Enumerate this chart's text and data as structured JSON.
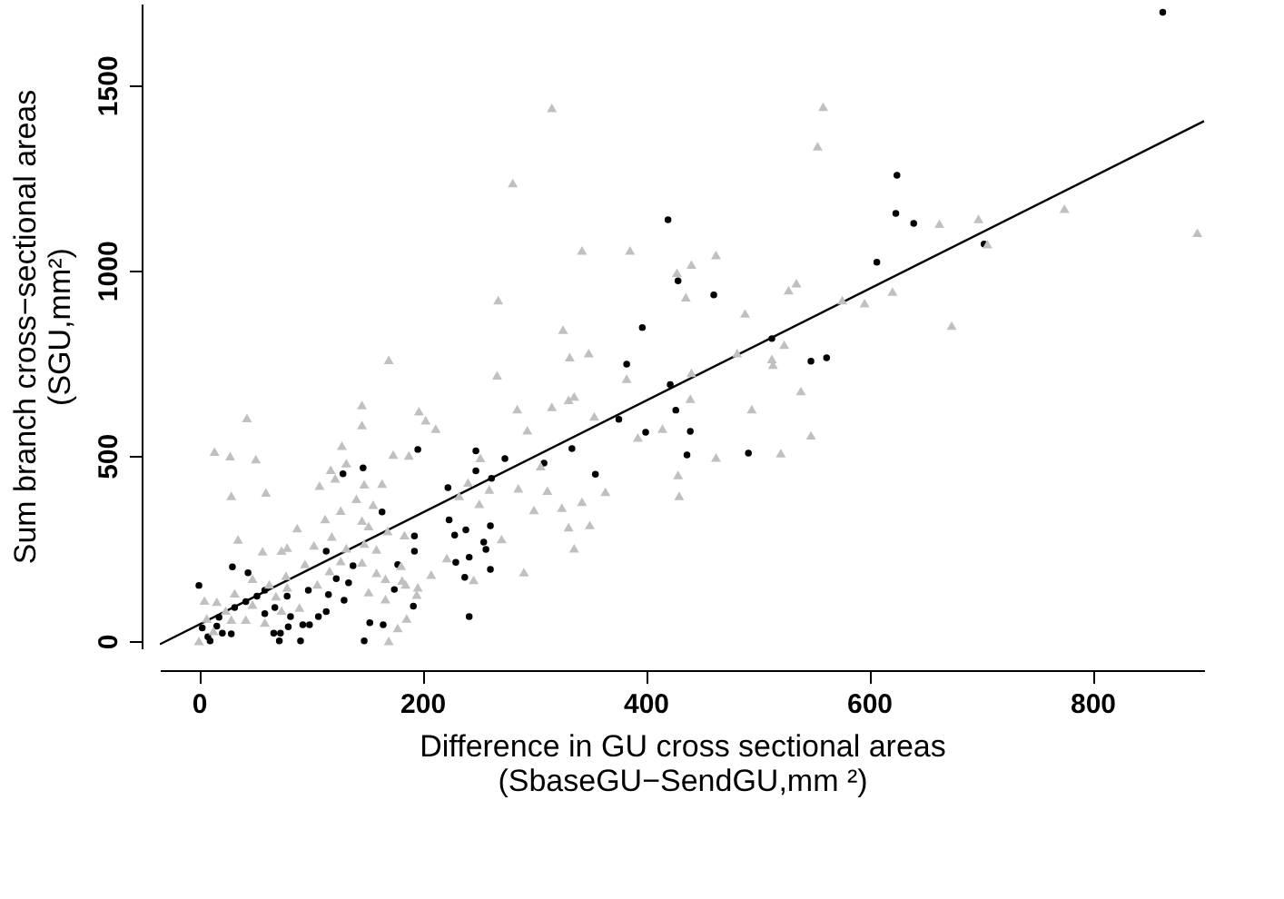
{
  "chart_data": {
    "type": "scatter",
    "xlabel": "Difference in GU cross sectional areas\n(SbaseGU−SendGU,mm ²)",
    "ylabel": "Sum branch cross−sectional areas\n(SGU,mm²)",
    "xlim": [
      -35,
      900
    ],
    "ylim": [
      -20,
      1720
    ],
    "xticks": [
      0,
      200,
      400,
      600,
      800
    ],
    "yticks": [
      0,
      500,
      1000,
      1500
    ],
    "grid": false,
    "series": [
      {
        "marker": "circle",
        "color": "#000000",
        "x": [
          863,
          625,
          624,
          640,
          607,
          420,
          429,
          461,
          703,
          513,
          548,
          562,
          422,
          427,
          440,
          437,
          492,
          397,
          383,
          400,
          376,
          334,
          355,
          309,
          274,
          262,
          248,
          248,
          223,
          224,
          239,
          261,
          255,
          257,
          261,
          242,
          230,
          229,
          238,
          242,
          196,
          193,
          193,
          192,
          178,
          175,
          164,
          147,
          129,
          165,
          153,
          148,
          114,
          138,
          134,
          130,
          114,
          107,
          99,
          93,
          91,
          80,
          73,
          72,
          67,
          82,
          59,
          44,
          30,
          0,
          8,
          10,
          21,
          29,
          18,
          32,
          42,
          52,
          59,
          68,
          79,
          98,
          116,
          123,
          3,
          16
        ],
        "values": [
          1697,
          1257,
          1154,
          1127,
          1022,
          1137,
          972,
          934,
          1071,
          816,
          755,
          764,
          692,
          623,
          566,
          502,
          507,
          846,
          747,
          563,
          598,
          519,
          450,
          480,
          492,
          439,
          513,
          459,
          414,
          327,
          300,
          311,
          267,
          247,
          193,
          226,
          212,
          286,
          172,
          66,
          517,
          283,
          242,
          94,
          206,
          139,
          348,
          467,
          451,
          44,
          49,
          0,
          242,
          203,
          157,
          110,
          79,
          66,
          44,
          44,
          0,
          38,
          21,
          0,
          21,
          66,
          137,
          184,
          200,
          150,
          11,
          0,
          21,
          19,
          64,
          90,
          106,
          121,
          74,
          90,
          121,
          137,
          125,
          168,
          35,
          40
        ]
      },
      {
        "marker": "triangle",
        "color": "#c0c0c0",
        "x": [
          559,
          554,
          663,
          698,
          775,
          894,
          706,
          463,
          441,
          428,
          436,
          535,
          528,
          489,
          576,
          596,
          621,
          674,
          482,
          524,
          513,
          514,
          539,
          441,
          440,
          495,
          415,
          548,
          521,
          463,
          429,
          430,
          316,
          281,
          343,
          386,
          268,
          326,
          332,
          349,
          267,
          285,
          316,
          331,
          336,
          354,
          383,
          393,
          364,
          343,
          331,
          336,
          350,
          325,
          312,
          306,
          294,
          300,
          286,
          271,
          291,
          260,
          251,
          241,
          233,
          252,
          246,
          222,
          208,
          212,
          203,
          197,
          170,
          146,
          146,
          132,
          118,
          128,
          174,
          188,
          164,
          148,
          108,
          122,
          141,
          156,
          113,
          127,
          88,
          103,
          119,
          132,
          152,
          159,
          169,
          184,
          181,
          167,
          152,
          167,
          186,
          178,
          170,
          195,
          14,
          28,
          43,
          51,
          29,
          60,
          35,
          57,
          74,
          79,
          95,
          78,
          63,
          48,
          32,
          16,
          5,
          7,
          0,
          13,
          42,
          59,
          74,
          90,
          106,
          117,
          127,
          146,
          159,
          182,
          196,
          148,
          146,
          185,
          29,
          24,
          48,
          69,
          79
        ],
        "values": [
          1442,
          1335,
          1126,
          1139,
          1167,
          1102,
          1071,
          1042,
          1016,
          994,
          928,
          966,
          947,
          884,
          920,
          912,
          943,
          851,
          777,
          800,
          761,
          746,
          675,
          724,
          654,
          626,
          573,
          555,
          507,
          495,
          448,
          392,
          1439,
          1236,
          1054,
          1054,
          920,
          840,
          766,
          777,
          717,
          626,
          632,
          651,
          660,
          606,
          708,
          549,
          403,
          376,
          307,
          250,
          313,
          360,
          406,
          472,
          569,
          354,
          412,
          275,
          186,
          409,
          370,
          428,
          392,
          494,
          165,
          224,
          179,
          573,
          596,
          620,
          759,
          637,
          583,
          480,
          462,
          527,
          503,
          501,
          425,
          423,
          419,
          439,
          384,
          368,
          329,
          352,
          305,
          258,
          282,
          250,
          310,
          247,
          297,
          286,
          203,
          168,
          132,
          113,
          61,
          35,
          0,
          125,
          511,
          499,
          602,
          491,
          392,
          401,
          274,
          242,
          244,
          252,
          208,
          176,
          153,
          168,
          129,
          106,
          109,
          61,
          0,
          27,
          58,
          50,
          82,
          90,
          153,
          189,
          216,
          212,
          184,
          163,
          145,
          263,
          325,
          153,
          58,
          82,
          98,
          121,
          145
        ]
      },
      {
        "type": "line",
        "line_style": "solid",
        "color": "#000000",
        "x": [
          -35,
          900
        ],
        "values": [
          -9,
          1403
        ]
      }
    ]
  }
}
